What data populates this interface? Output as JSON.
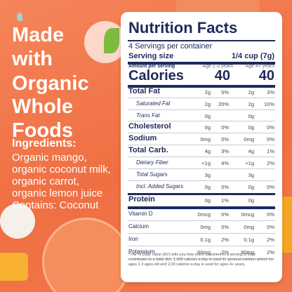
{
  "headline": [
    "Made",
    "with",
    "Organic",
    "Whole",
    "Foods"
  ],
  "ingredients": {
    "title": "Ingredients:",
    "lines": [
      "Organic mango,",
      "organic coconut milk,",
      "organic carrot,",
      "organic lemon juice",
      "Contains: Coconut"
    ]
  },
  "nutrition": {
    "title": "Nutrition Facts",
    "servings": "4 Servings per container",
    "serving_size_label": "Serving size",
    "serving_size": "1/4 cup (7g)",
    "amount_per_serving": "Amount per serving",
    "age_groups": [
      "Age 1-3 years",
      "Age 4+ years"
    ],
    "calories_label": "Calories",
    "calories": [
      "40",
      "40"
    ],
    "rows": [
      {
        "name": "Total Fat",
        "bold": true,
        "a_amount": "2g",
        "a_dv": "5%",
        "b_amount": "2g",
        "b_dv": "3%"
      },
      {
        "name": "Saturated Fat",
        "indent": true,
        "a_amount": "2g",
        "a_dv": "20%",
        "b_amount": "2g",
        "b_dv": "10%"
      },
      {
        "name": "Trans Fat",
        "indent": true,
        "a_amount": "0g",
        "b_amount": "0g"
      },
      {
        "name": "Cholesterol",
        "bold": true,
        "a_amount": "0g",
        "a_dv": "0%",
        "b_amount": "0g",
        "b_dv": "0%"
      },
      {
        "name": "Sodium",
        "bold": true,
        "a_amount": "0mg",
        "a_dv": "0%",
        "b_amount": "0mg",
        "b_dv": "0%"
      },
      {
        "name": "Total Carb.",
        "bold": true,
        "a_amount": "4g",
        "a_dv": "3%",
        "b_amount": "4g",
        "b_dv": "1%"
      },
      {
        "name": "Dietary Fiber",
        "indent": true,
        "a_amount": "<1g",
        "a_dv": "4%",
        "b_amount": "<1g",
        "b_dv": "2%"
      },
      {
        "name": "Total Sugars",
        "indent": true,
        "a_amount": "3g",
        "b_amount": "3g"
      },
      {
        "name": "Incl. Added Sugars",
        "indent": true,
        "a_amount": "0g",
        "a_dv": "0%",
        "b_amount": "0g",
        "b_dv": "0%"
      },
      {
        "name": "Protein",
        "bold": true,
        "a_amount": "0g",
        "a_dv": "1%",
        "b_amount": "0g"
      },
      {
        "name": "Vitamin D",
        "a_amount": "0mcg",
        "a_dv": "0%",
        "b_amount": "0mcg",
        "b_dv": "0%"
      },
      {
        "name": "Calcium",
        "a_amount": "0mg",
        "a_dv": "0%",
        "b_amount": "0mg",
        "b_dv": "0%"
      },
      {
        "name": "Iron",
        "a_amount": "0.1g",
        "a_dv": "2%",
        "b_amount": "0.1g",
        "b_dv": "2%"
      },
      {
        "name": "Potassium",
        "a_amount": "60mg",
        "a_dv": "2%",
        "b_amount": "60mg",
        "b_dv": "2%"
      }
    ],
    "footnote": "*The % Daily Value (DV) tells you how much a nutrient in a serving of food contributes to a daily diet. 1,000 calories a day is used for general nutrition advice for ages 1-3 ages old and 2,00 calories a day is used for ages 4+ years."
  }
}
